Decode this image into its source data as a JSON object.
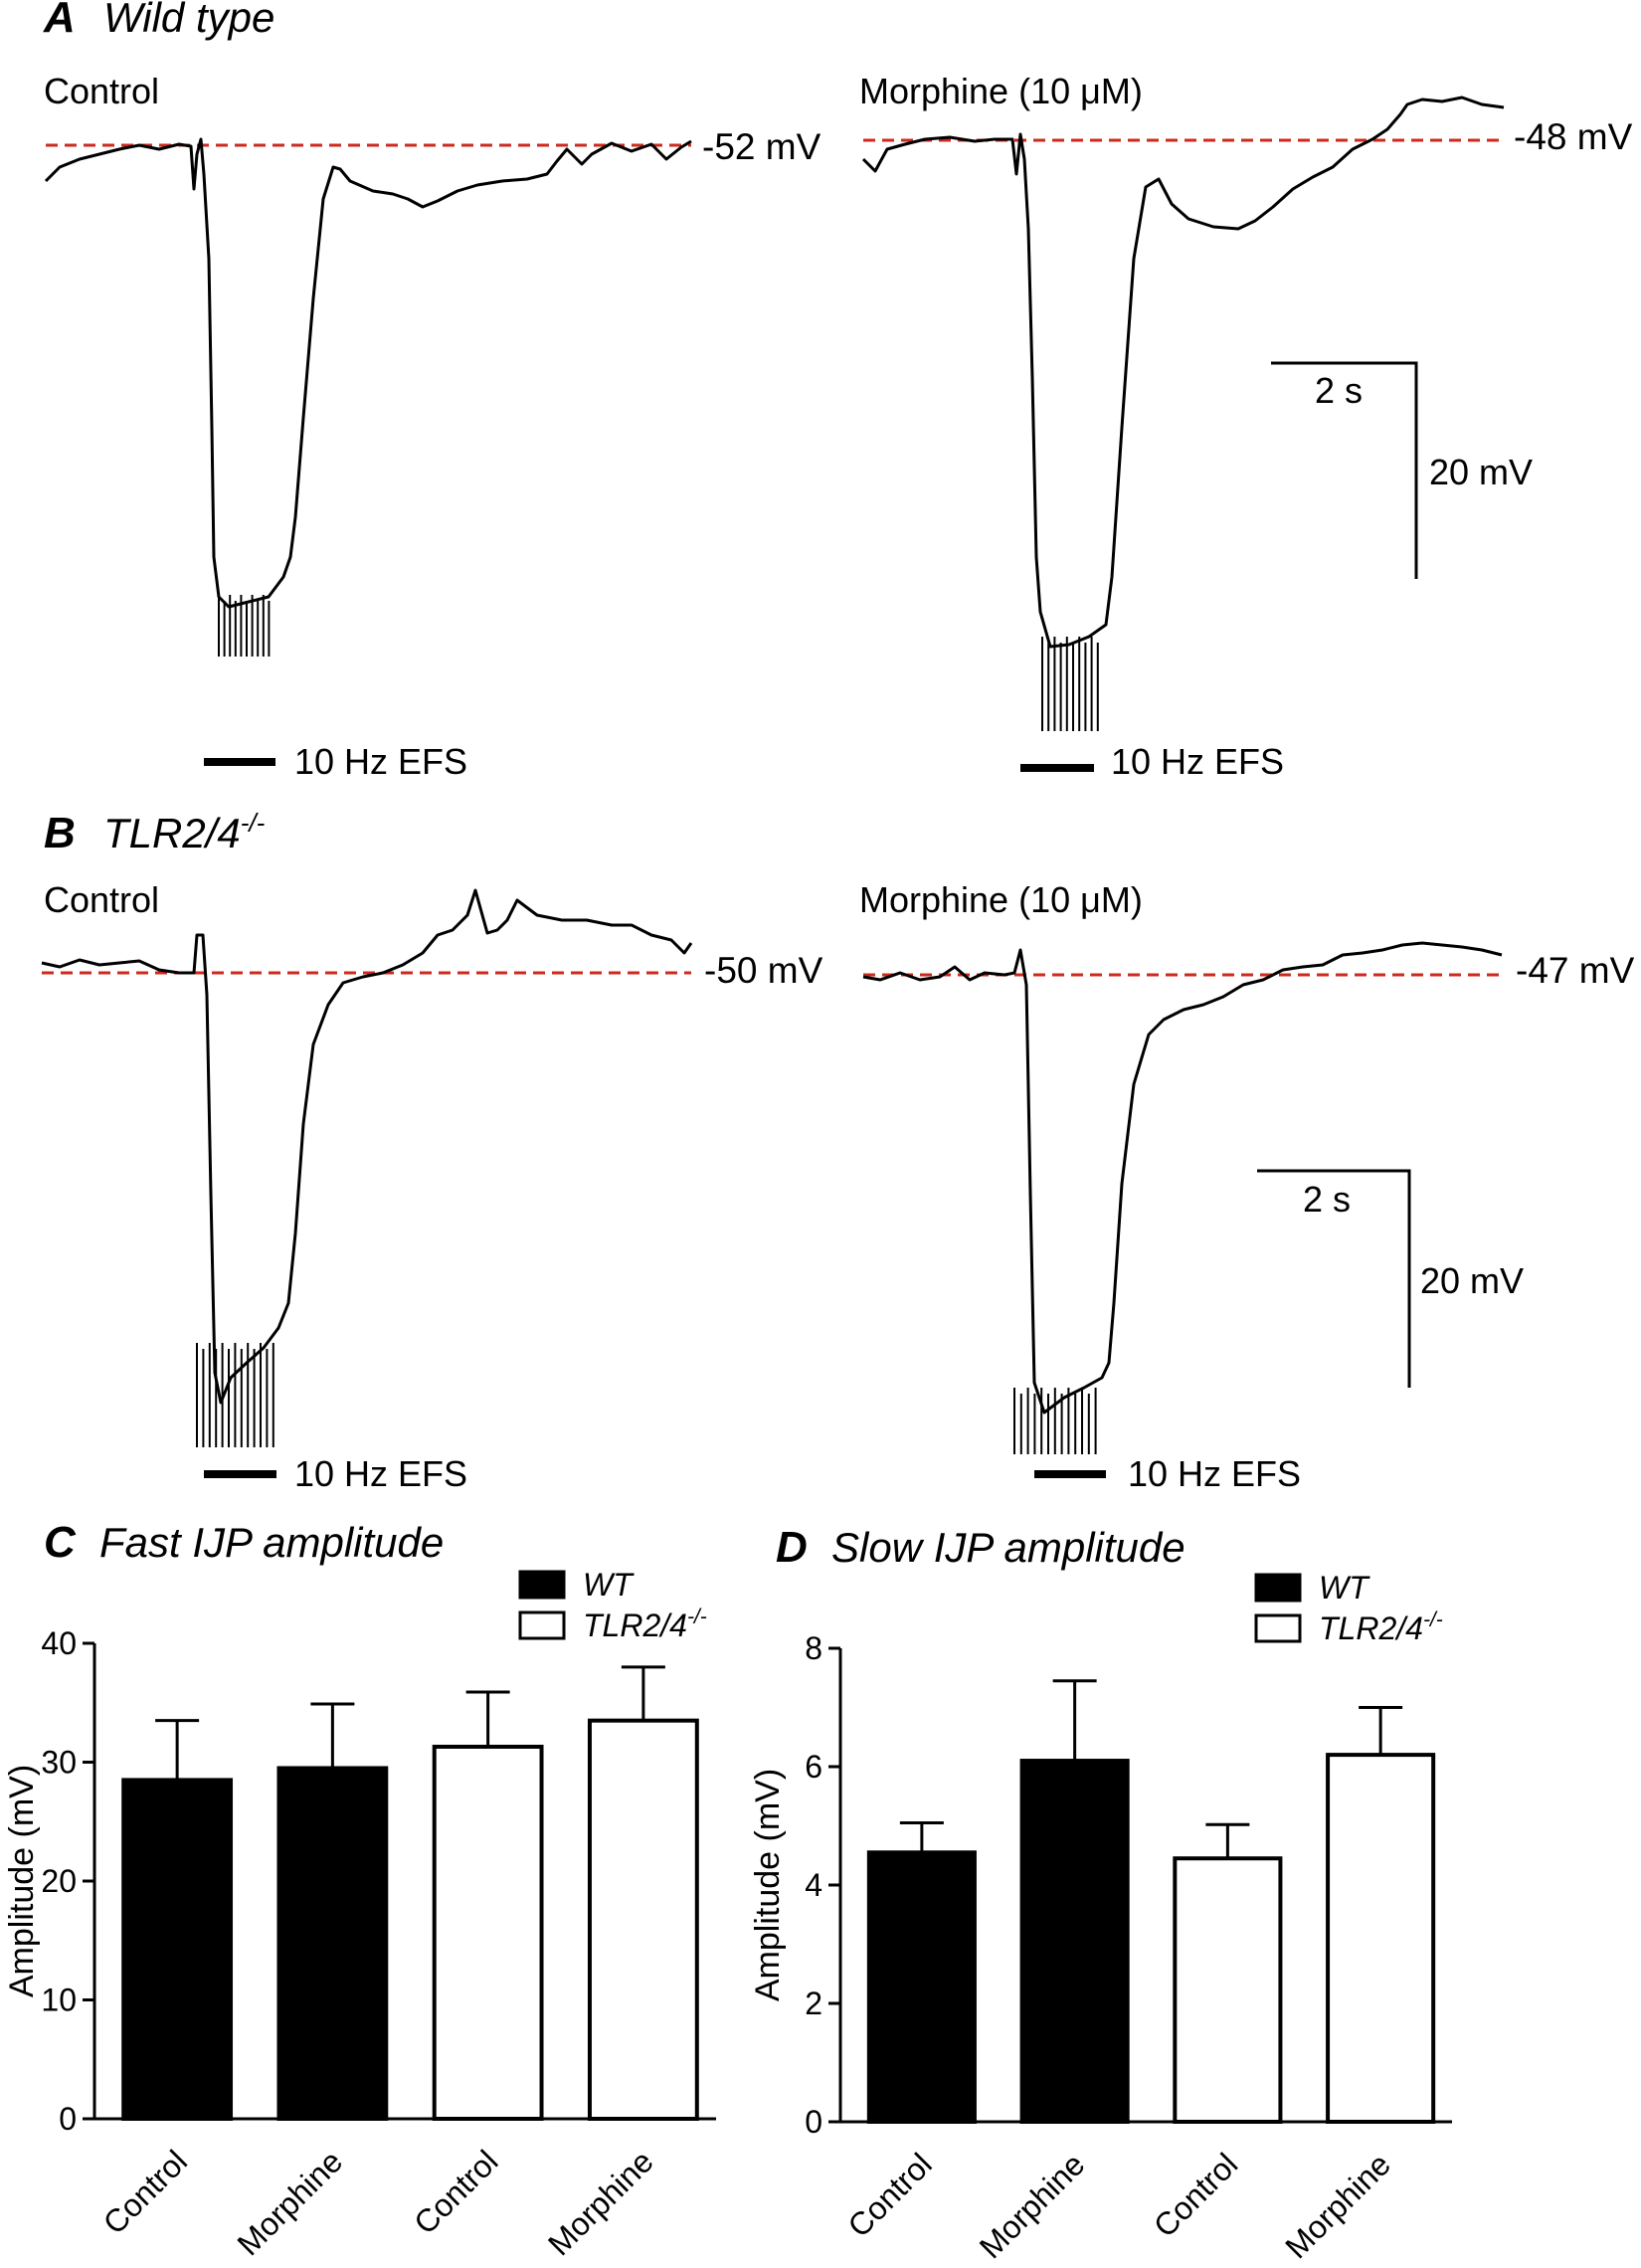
{
  "panels": {
    "A": {
      "letter": "A",
      "title": "Wild type",
      "title_sup": ""
    },
    "B": {
      "letter": "B",
      "title": "TLR2/4",
      "title_sup": "-/-"
    },
    "C": {
      "letter": "C",
      "title": "Fast IJP amplitude"
    },
    "D": {
      "letter": "D",
      "title": "Slow IJP amplitude"
    }
  },
  "traces": [
    {
      "id": "A-control",
      "label": "Control",
      "baseline": "-52 mV",
      "stim": "10 Hz EFS"
    },
    {
      "id": "A-morphine",
      "label": "Morphine (10 μM)",
      "baseline": "-48 mV",
      "stim": "10 Hz EFS"
    },
    {
      "id": "B-control",
      "label": "Control",
      "baseline": "-50 mV",
      "stim": "10 Hz EFS"
    },
    {
      "id": "B-morphine",
      "label": "Morphine (10 μM)",
      "baseline": "-47 mV",
      "stim": "10 Hz EFS"
    }
  ],
  "scale_bars": {
    "time": "2 s",
    "voltage": "20 mV"
  },
  "colors": {
    "baseline": "#cc2a1e",
    "wt_bar": "#000000",
    "ko_bar": "#ffffff"
  },
  "chart_data": [
    {
      "type": "bar",
      "panel": "C",
      "title": "Fast IJP amplitude",
      "ylabel": "Amplitude (mV)",
      "xlabel": "",
      "ylim": [
        0,
        40
      ],
      "yticks": [
        0,
        10,
        20,
        30,
        40
      ],
      "categories": [
        "Control",
        "Morphine",
        "Control",
        "Morphine"
      ],
      "values": [
        28.5,
        29.5,
        31.3,
        33.5
      ],
      "errors": [
        5.0,
        5.4,
        4.6,
        4.5
      ],
      "groups": [
        "WT",
        "WT",
        "TLR2/4-/-",
        "TLR2/4-/-"
      ],
      "legend": [
        {
          "name": "WT",
          "sup": "",
          "fill": "#000000"
        },
        {
          "name": "TLR2/4",
          "sup": "-/-",
          "fill": "#ffffff"
        }
      ],
      "legend_position": "top-right"
    },
    {
      "type": "bar",
      "panel": "D",
      "title": "Slow IJP amplitude",
      "ylabel": "Amplitude (mV)",
      "xlabel": "",
      "ylim": [
        0,
        8
      ],
      "yticks": [
        0,
        2,
        4,
        6,
        8
      ],
      "categories": [
        "Control",
        "Morphine",
        "Control",
        "Morphine"
      ],
      "values": [
        4.55,
        6.1,
        4.45,
        6.2
      ],
      "errors": [
        0.5,
        1.35,
        0.57,
        0.8
      ],
      "groups": [
        "WT",
        "WT",
        "TLR2/4-/-",
        "TLR2/4-/-"
      ],
      "legend": [
        {
          "name": "WT",
          "sup": "",
          "fill": "#000000"
        },
        {
          "name": "TLR2/4",
          "sup": "-/-",
          "fill": "#ffffff"
        }
      ],
      "legend_position": "top-right"
    }
  ]
}
